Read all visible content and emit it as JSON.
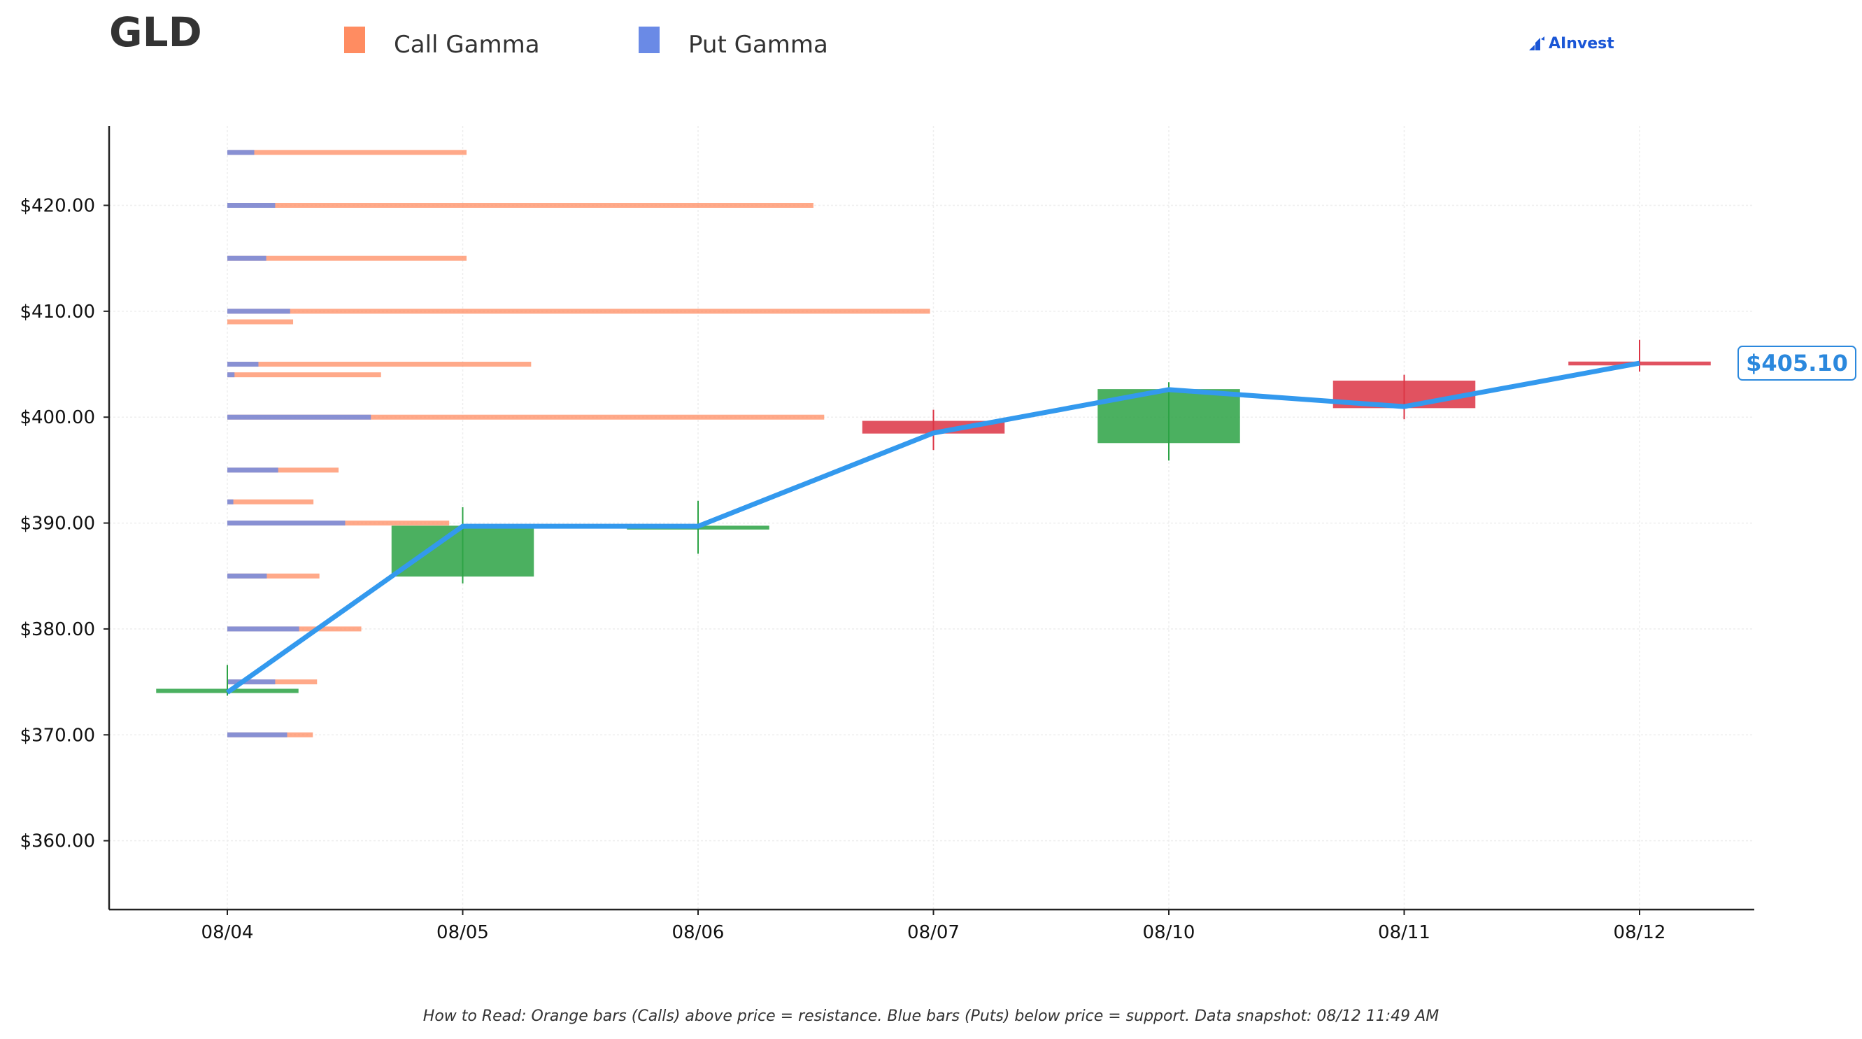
{
  "ticker": "GLD",
  "legend": [
    {
      "label": "Call Gamma",
      "color": "#ff8c61"
    },
    {
      "label": "Put Gamma",
      "color": "#6a8ae6"
    }
  ],
  "brand": {
    "name": "AInvest",
    "icon": "ainvest-logo-icon",
    "color": "#1a56d6"
  },
  "footnote": "How to Read: Orange bars (Calls) above price = resistance. Blue bars (Puts) below price = support. Data snapshot: 08/12 11:49 AM",
  "chart_data": {
    "type": "candlestick",
    "title": "",
    "xlabel": "",
    "ylabel": "",
    "ylim": [
      353.5,
      427.5
    ],
    "yticks": [
      360,
      370,
      380,
      390,
      400,
      410,
      420
    ],
    "ytick_labels": [
      "$360.00",
      "$370.00",
      "$380.00",
      "$390.00",
      "$400.00",
      "$410.00",
      "$420.00"
    ],
    "categories": [
      "08/04",
      "08/05",
      "08/06",
      "08/07",
      "08/10",
      "08/11",
      "08/12"
    ],
    "candles": [
      {
        "date": "08/04",
        "open": 374.3,
        "close": 374.0,
        "high": 376.6,
        "low": 373.7,
        "color": "#2ca345"
      },
      {
        "date": "08/05",
        "open": 385.0,
        "close": 389.7,
        "high": 391.5,
        "low": 384.3,
        "color": "#2ca345"
      },
      {
        "date": "08/06",
        "open": 389.5,
        "close": 389.7,
        "high": 392.1,
        "low": 387.1,
        "color": "#2ca345"
      },
      {
        "date": "08/07",
        "open": 399.6,
        "close": 398.5,
        "high": 400.7,
        "low": 396.9,
        "color": "#dc3545"
      },
      {
        "date": "08/10",
        "open": 397.6,
        "close": 402.6,
        "high": 403.3,
        "low": 395.9,
        "color": "#2ca345"
      },
      {
        "date": "08/11",
        "open": 403.4,
        "close": 400.9,
        "high": 404.0,
        "low": 399.8,
        "color": "#dc3545"
      },
      {
        "date": "08/12",
        "open": 405.2,
        "close": 405.1,
        "high": 407.3,
        "low": 404.3,
        "color": "#dc3545"
      }
    ],
    "price_line": {
      "values": [
        374.0,
        389.7,
        389.7,
        398.5,
        402.6,
        401.0,
        405.1
      ],
      "color": "#3399ee"
    },
    "current_price": {
      "value": 405.1,
      "label": "$405.10",
      "color": "#2b88dd"
    },
    "gamma_bars": [
      {
        "strike": 425,
        "put": 0.45,
        "call": 4.0
      },
      {
        "strike": 420,
        "put": 0.8,
        "call": 9.8
      },
      {
        "strike": 415,
        "put": 0.65,
        "call": 4.0
      },
      {
        "strike": 410,
        "put": 1.05,
        "call": 11.75
      },
      {
        "strike": 409,
        "put": 0.0,
        "call": 1.1
      },
      {
        "strike": 405,
        "put": 0.52,
        "call": 5.08
      },
      {
        "strike": 404,
        "put": 0.12,
        "call": 2.57
      },
      {
        "strike": 400,
        "put": 2.4,
        "call": 9.98
      },
      {
        "strike": 395,
        "put": 0.85,
        "call": 1.86
      },
      {
        "strike": 392,
        "put": 0.1,
        "call": 1.44
      },
      {
        "strike": 390,
        "put": 1.97,
        "call": 3.71
      },
      {
        "strike": 385,
        "put": 0.66,
        "call": 1.54
      },
      {
        "strike": 380,
        "put": 1.2,
        "call": 2.24
      },
      {
        "strike": 375,
        "put": 0.8,
        "call": 1.5
      },
      {
        "strike": 370,
        "put": 1.0,
        "call": 1.43
      }
    ],
    "grid": true,
    "legend_position": "top-left"
  }
}
